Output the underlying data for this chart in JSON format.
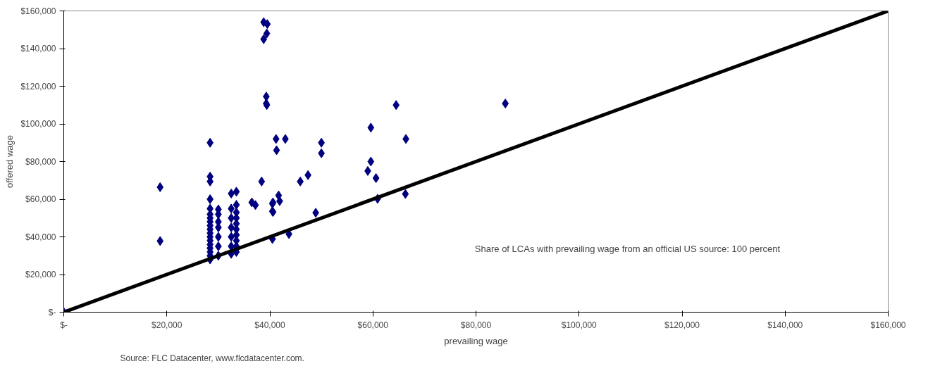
{
  "chart_data": {
    "type": "scatter",
    "xlabel": "prevailing wage",
    "ylabel": "offered wage",
    "annotations": [
      "Share of LCAs with prevailing wage from an official US source: 100 percent",
      "Source:  FLC Datacenter, www.flcdatacenter.com."
    ],
    "xlim": [
      0,
      160000
    ],
    "ylim": [
      0,
      160000
    ],
    "xticks": [
      {
        "value": 0,
        "label": "$-"
      },
      {
        "value": 20000,
        "label": "$20,000"
      },
      {
        "value": 40000,
        "label": "$40,000"
      },
      {
        "value": 60000,
        "label": "$60,000"
      },
      {
        "value": 80000,
        "label": "$80,000"
      },
      {
        "value": 100000,
        "label": "$100,000"
      },
      {
        "value": 120000,
        "label": "$120,000"
      },
      {
        "value": 140000,
        "label": "$140,000"
      },
      {
        "value": 160000,
        "label": "$160,000"
      }
    ],
    "yticks": [
      {
        "value": 0,
        "label": "$-"
      },
      {
        "value": 20000,
        "label": "$20,000"
      },
      {
        "value": 40000,
        "label": "$40,000"
      },
      {
        "value": 60000,
        "label": "$60,000"
      },
      {
        "value": 80000,
        "label": "$80,000"
      },
      {
        "value": 100000,
        "label": "$100,000"
      },
      {
        "value": 120000,
        "label": "$120,000"
      },
      {
        "value": 140000,
        "label": "$140,000"
      },
      {
        "value": 160000,
        "label": "$160,000"
      }
    ],
    "grid": false,
    "marker": "diamond",
    "series": [
      {
        "color": "#000080",
        "x": [
          0,
          18700,
          18700,
          28400,
          28400,
          28400,
          28400,
          28400,
          28400,
          28400,
          28400,
          28400,
          28400,
          28400,
          28400,
          28400,
          28400,
          28400,
          28400,
          28400,
          28400,
          30000,
          30000,
          30000,
          30000,
          30000,
          30000,
          30000,
          32500,
          32500,
          32500,
          32500,
          32500,
          32500,
          32500,
          33500,
          33500,
          33500,
          33500,
          33500,
          33500,
          33500,
          33500,
          33500,
          33500,
          38400,
          38800,
          39500,
          39400,
          38800,
          39300,
          39300,
          39400,
          36500,
          37200,
          40500,
          40500,
          40500,
          41200,
          43000,
          41300,
          41700,
          40600,
          41900,
          40600,
          43700,
          45900,
          47400,
          48900,
          50000,
          50000,
          59600,
          59000,
          59600,
          60600,
          60900,
          64500,
          66400,
          66300,
          85700
        ],
        "values": [
          0,
          66400,
          37800,
          90000,
          72000,
          69400,
          60000,
          55000,
          52000,
          50000,
          48000,
          46000,
          44000,
          42000,
          40000,
          38000,
          36000,
          34000,
          32000,
          30000,
          28000,
          30000,
          35000,
          40000,
          45000,
          48000,
          52000,
          54600,
          63000,
          55000,
          50000,
          45000,
          40000,
          35000,
          31000,
          64000,
          57000,
          53000,
          50000,
          47000,
          44000,
          41000,
          38000,
          35000,
          32000,
          69400,
          154000,
          153000,
          148000,
          145000,
          114500,
          110800,
          110000,
          58300,
          56900,
          57600,
          53600,
          38900,
          92000,
          92000,
          86000,
          62000,
          58300,
          59000,
          53200,
          41500,
          69400,
          72800,
          52800,
          90000,
          84400,
          98000,
          75000,
          80000,
          71200,
          60200,
          110000,
          92000,
          62800,
          110800
        ]
      },
      {
        "type": "line",
        "color": "#000000",
        "marker": "none",
        "x": [
          0,
          160000
        ],
        "values": [
          0,
          160000
        ]
      }
    ]
  }
}
